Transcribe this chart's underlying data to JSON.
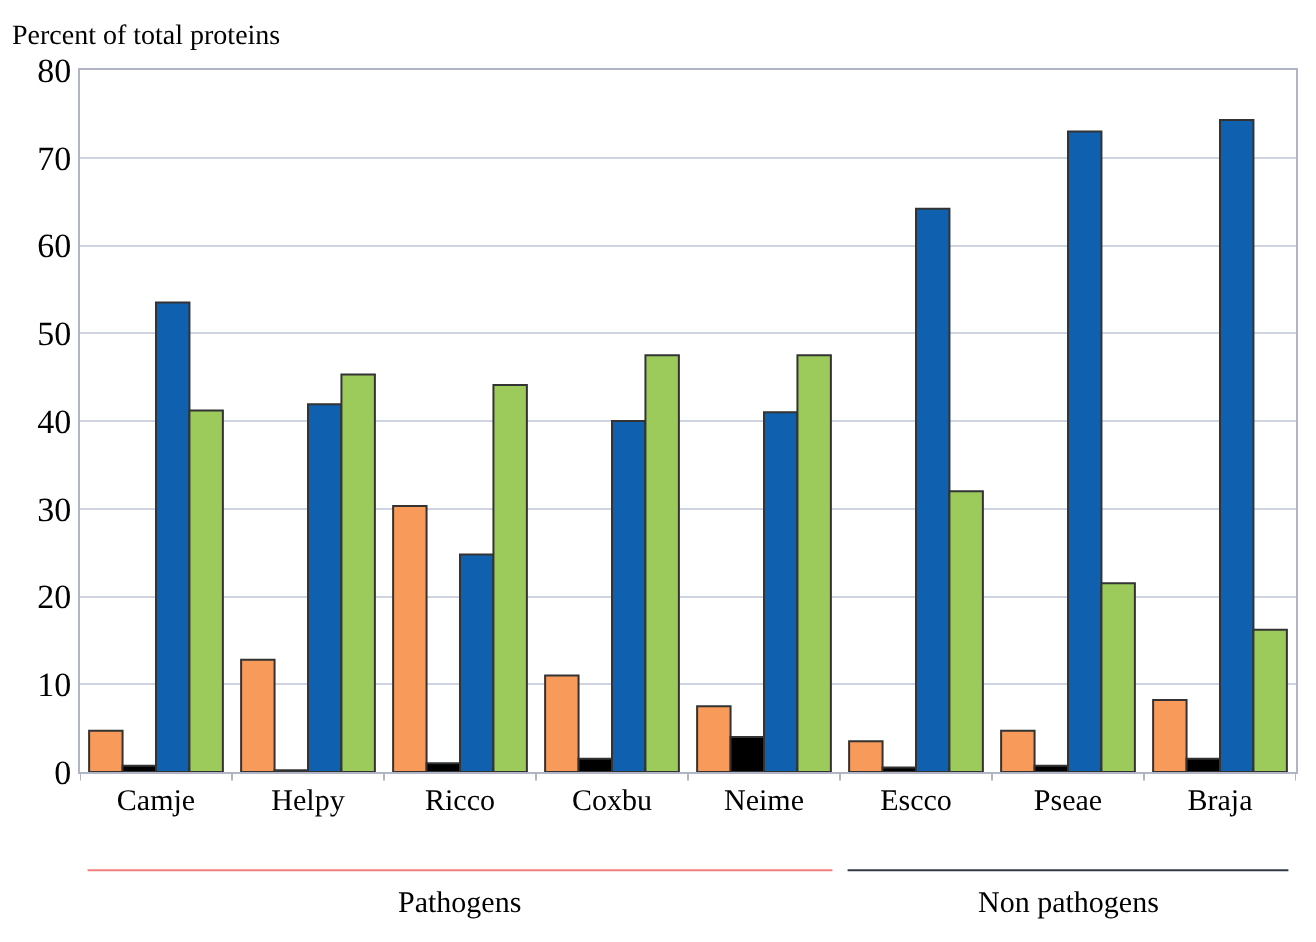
{
  "chart_data": {
    "type": "bar",
    "ylabel": "Percent of total proteins",
    "categories": [
      "Camje",
      "Helpy",
      "Ricco",
      "Coxbu",
      "Neime",
      "Escco",
      "Pseae",
      "Braja"
    ],
    "series": [
      {
        "color": "#f79a5a",
        "values": [
          4.7,
          12.8,
          30.3,
          11.0,
          7.5,
          3.5,
          4.7,
          8.2
        ]
      },
      {
        "color": "#000000",
        "values": [
          0.7,
          0.2,
          1.0,
          1.5,
          4.0,
          0.5,
          0.7,
          1.5
        ]
      },
      {
        "color": "#1060b0",
        "values": [
          53.5,
          41.9,
          24.8,
          40.0,
          41.0,
          64.2,
          73.0,
          74.3
        ]
      },
      {
        "color": "#9ccb5c",
        "values": [
          41.2,
          45.3,
          44.1,
          47.5,
          47.5,
          32.0,
          21.5,
          16.2
        ]
      }
    ],
    "ylim": [
      0,
      80
    ],
    "yticks": [
      0,
      10,
      20,
      30,
      40,
      50,
      60,
      70,
      80
    ],
    "grid": "y",
    "legend": false,
    "annotations": [
      "Pathogens",
      "Non pathogens"
    ]
  }
}
